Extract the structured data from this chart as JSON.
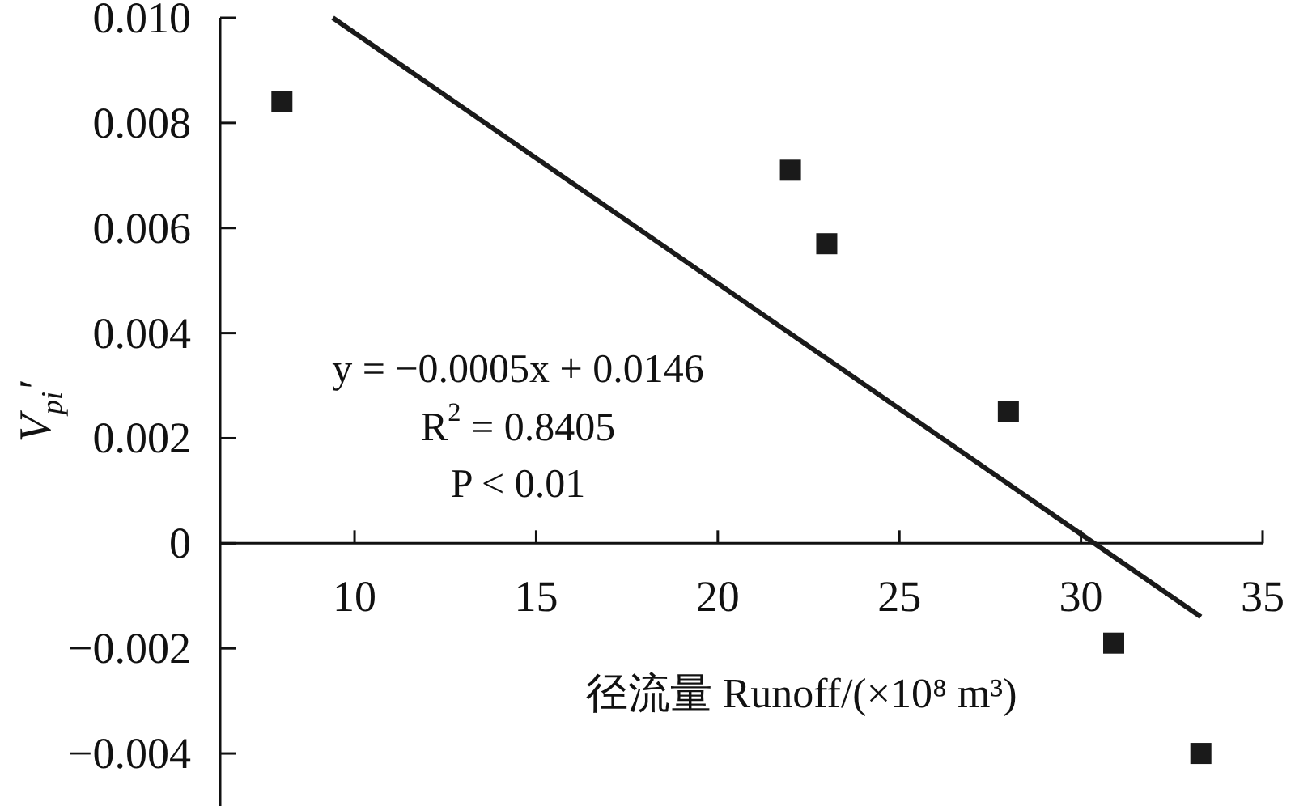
{
  "chart_data": {
    "type": "scatter",
    "xlabel": "径流量 Runoff/(×10⁸ m³)",
    "ylabel": "V$_{pi}$′",
    "xlim": [
      6.3,
      35
    ],
    "xticks": [
      10,
      15,
      20,
      25,
      30,
      35
    ],
    "ylim": [
      -0.005,
      0.01
    ],
    "yticks": [
      {
        "value": 0.01,
        "label": "0.010"
      },
      0.008,
      0.006,
      0.004,
      0.002,
      0,
      {
        "value": -0.002,
        "label": "−0.002"
      },
      {
        "value": -0.004,
        "label": "−0.004"
      }
    ],
    "series": [
      {
        "color": "#1a1a1a",
        "marker": "square",
        "x": [
          8,
          22,
          23,
          28,
          30.9,
          33.3
        ],
        "values": [
          0.0084,
          0.0071,
          0.0057,
          0.0025,
          -0.0019,
          -0.004
        ]
      },
      {
        "type": "line",
        "color": "#1a1a1a",
        "line_style": "solid",
        "x": [
          9.4,
          33.3
        ],
        "values": [
          0.01,
          -0.0014
        ]
      }
    ],
    "annotations": [
      "y = −0.0005x + 0.0146",
      "R$^{2}$ = 0.8405",
      "P < 0.01"
    ]
  }
}
